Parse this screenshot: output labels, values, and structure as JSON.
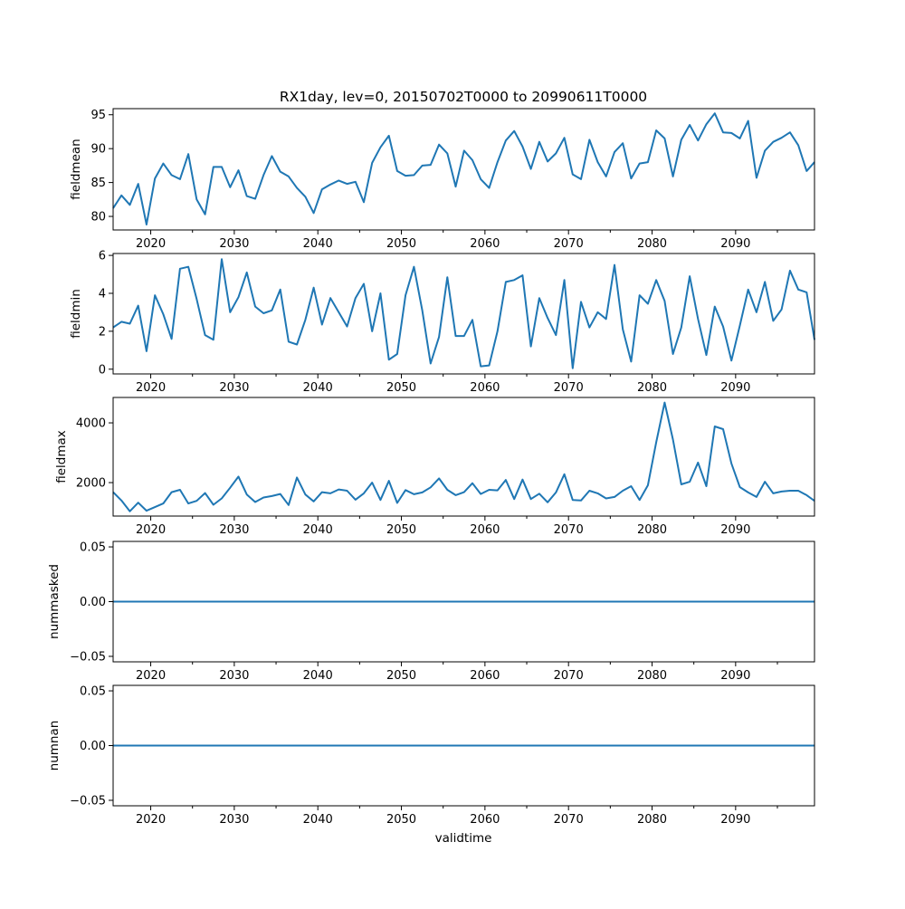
{
  "chart_data": [
    {
      "type": "line",
      "title": "RX1day, lev=0, 20150702T0000 to 20990611T0000",
      "xlabel": "validtime",
      "xlim": [
        2015.5,
        2099.44
      ],
      "x_ticks": [
        "2020",
        "2030",
        "2040",
        "2050",
        "2060",
        "2070",
        "2080",
        "2090"
      ],
      "color": "#1f77b4",
      "x_years": [
        2015,
        2016,
        2017,
        2018,
        2019,
        2020,
        2021,
        2022,
        2023,
        2024,
        2025,
        2026,
        2027,
        2028,
        2029,
        2030,
        2031,
        2032,
        2033,
        2034,
        2035,
        2036,
        2037,
        2038,
        2039,
        2040,
        2041,
        2042,
        2043,
        2044,
        2045,
        2046,
        2047,
        2048,
        2049,
        2050,
        2051,
        2052,
        2053,
        2054,
        2055,
        2056,
        2057,
        2058,
        2059,
        2060,
        2061,
        2062,
        2063,
        2064,
        2065,
        2066,
        2067,
        2068,
        2069,
        2070,
        2071,
        2072,
        2073,
        2074,
        2075,
        2076,
        2077,
        2078,
        2079,
        2080,
        2081,
        2082,
        2083,
        2084,
        2085,
        2086,
        2087,
        2088,
        2089,
        2090,
        2091,
        2092,
        2093,
        2094,
        2095,
        2096,
        2097,
        2098,
        2099
      ],
      "panels": [
        {
          "ylabel": "fieldmean",
          "ylim": [
            78.0,
            95.9
          ],
          "y_ticks": [
            {
              "v": 80,
              "label": "80"
            },
            {
              "v": 85,
              "label": "85"
            },
            {
              "v": 90,
              "label": "90"
            },
            {
              "v": 95,
              "label": "95"
            }
          ],
          "values": [
            81.2,
            83.1,
            81.7,
            84.8,
            78.8,
            85.6,
            87.8,
            86.1,
            85.5,
            89.2,
            82.5,
            80.3,
            87.3,
            87.3,
            84.3,
            86.8,
            83.0,
            82.6,
            86.1,
            88.9,
            86.6,
            85.9,
            84.2,
            82.9,
            80.5,
            84.0,
            84.7,
            85.3,
            84.8,
            85.1,
            82.1,
            87.9,
            90.2,
            91.9,
            86.7,
            86.0,
            86.1,
            87.5,
            87.6,
            90.6,
            89.3,
            84.4,
            89.7,
            88.3,
            85.5,
            84.2,
            88.0,
            91.2,
            92.6,
            90.3,
            87.0,
            91.0,
            88.1,
            89.3,
            91.6,
            86.2,
            85.5,
            91.3,
            88.0,
            85.9,
            89.5,
            90.8,
            85.6,
            87.8,
            88.0,
            92.7,
            91.5,
            85.9,
            91.3,
            93.5,
            91.2,
            93.6,
            95.2,
            92.4,
            92.3,
            91.5,
            94.1,
            85.7,
            89.7,
            91.0,
            91.6,
            92.4,
            90.5,
            86.7,
            88.0
          ]
        },
        {
          "ylabel": "fieldmin",
          "ylim": [
            -0.25,
            6.1
          ],
          "y_ticks": [
            {
              "v": 0,
              "label": "0"
            },
            {
              "v": 2,
              "label": "2"
            },
            {
              "v": 4,
              "label": "4"
            },
            {
              "v": 6,
              "label": "6"
            }
          ],
          "values": [
            2.2,
            2.5,
            2.4,
            3.35,
            0.95,
            3.9,
            2.9,
            1.6,
            5.3,
            5.4,
            3.7,
            1.8,
            1.55,
            5.8,
            3.0,
            3.8,
            5.1,
            3.3,
            2.95,
            3.1,
            4.2,
            1.45,
            1.3,
            2.6,
            4.3,
            2.35,
            3.75,
            3.0,
            2.25,
            3.75,
            4.5,
            2.0,
            4.0,
            0.5,
            0.8,
            3.9,
            5.4,
            3.1,
            0.3,
            1.7,
            4.85,
            1.75,
            1.75,
            2.6,
            0.15,
            0.2,
            2.0,
            4.6,
            4.7,
            4.95,
            1.2,
            3.75,
            2.7,
            1.8,
            4.7,
            0.05,
            3.55,
            2.2,
            3.0,
            2.65,
            5.5,
            2.1,
            0.4,
            3.9,
            3.45,
            4.7,
            3.6,
            0.8,
            2.2,
            4.9,
            2.65,
            0.75,
            3.3,
            2.25,
            0.45,
            2.3,
            4.2,
            3.0,
            4.6,
            2.55,
            3.15,
            5.2,
            4.2,
            4.05,
            1.55
          ]
        },
        {
          "ylabel": "fieldmax",
          "ylim": [
            880,
            4850
          ],
          "y_ticks": [
            {
              "v": 2000,
              "label": "2000"
            },
            {
              "v": 4000,
              "label": "4000"
            }
          ],
          "values": [
            1680,
            1400,
            1040,
            1330,
            1060,
            1180,
            1300,
            1680,
            1760,
            1300,
            1390,
            1650,
            1260,
            1470,
            1830,
            2200,
            1600,
            1350,
            1500,
            1550,
            1620,
            1250,
            2170,
            1600,
            1370,
            1680,
            1640,
            1770,
            1730,
            1430,
            1640,
            2000,
            1420,
            2060,
            1320,
            1750,
            1610,
            1670,
            1840,
            2140,
            1760,
            1580,
            1680,
            1980,
            1620,
            1760,
            1740,
            2090,
            1450,
            2100,
            1450,
            1630,
            1340,
            1670,
            2280,
            1420,
            1400,
            1730,
            1640,
            1470,
            1520,
            1730,
            1880,
            1420,
            1910,
            3350,
            4680,
            3440,
            1940,
            2030,
            2670,
            1880,
            3880,
            3790,
            2640,
            1850,
            1670,
            1520,
            2030,
            1640,
            1700,
            1730,
            1730,
            1580,
            1390
          ]
        },
        {
          "ylabel": "nummasked",
          "ylim": [
            -0.055,
            0.055
          ],
          "y_ticks": [
            {
              "v": -0.05,
              "label": "−0.05"
            },
            {
              "v": 0,
              "label": "0.00"
            },
            {
              "v": 0.05,
              "label": "0.05"
            }
          ],
          "values": [
            0,
            0,
            0,
            0,
            0,
            0,
            0,
            0,
            0,
            0,
            0,
            0,
            0,
            0,
            0,
            0,
            0,
            0,
            0,
            0,
            0,
            0,
            0,
            0,
            0,
            0,
            0,
            0,
            0,
            0,
            0,
            0,
            0,
            0,
            0,
            0,
            0,
            0,
            0,
            0,
            0,
            0,
            0,
            0,
            0,
            0,
            0,
            0,
            0,
            0,
            0,
            0,
            0,
            0,
            0,
            0,
            0,
            0,
            0,
            0,
            0,
            0,
            0,
            0,
            0,
            0,
            0,
            0,
            0,
            0,
            0,
            0,
            0,
            0,
            0,
            0,
            0,
            0,
            0,
            0,
            0,
            0,
            0,
            0,
            0
          ]
        },
        {
          "ylabel": "numnan",
          "ylim": [
            -0.055,
            0.055
          ],
          "y_ticks": [
            {
              "v": -0.05,
              "label": "−0.05"
            },
            {
              "v": 0,
              "label": "0.00"
            },
            {
              "v": 0.05,
              "label": "0.05"
            }
          ],
          "values": [
            0,
            0,
            0,
            0,
            0,
            0,
            0,
            0,
            0,
            0,
            0,
            0,
            0,
            0,
            0,
            0,
            0,
            0,
            0,
            0,
            0,
            0,
            0,
            0,
            0,
            0,
            0,
            0,
            0,
            0,
            0,
            0,
            0,
            0,
            0,
            0,
            0,
            0,
            0,
            0,
            0,
            0,
            0,
            0,
            0,
            0,
            0,
            0,
            0,
            0,
            0,
            0,
            0,
            0,
            0,
            0,
            0,
            0,
            0,
            0,
            0,
            0,
            0,
            0,
            0,
            0,
            0,
            0,
            0,
            0,
            0,
            0,
            0,
            0,
            0,
            0,
            0,
            0,
            0,
            0,
            0,
            0,
            0,
            0,
            0
          ]
        }
      ]
    }
  ]
}
